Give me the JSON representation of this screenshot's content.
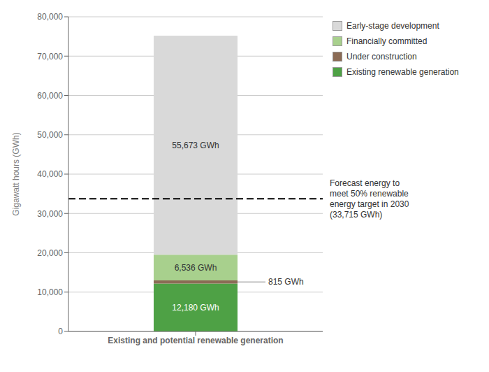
{
  "chart_data": {
    "type": "bar",
    "stacked": true,
    "categories": [
      "Existing and potential renewable generation"
    ],
    "series": [
      {
        "name": "Existing renewable generation",
        "color": "#4EA145",
        "values": [
          12180
        ],
        "value_labels": [
          "12,180 GWh"
        ]
      },
      {
        "name": "Under construction",
        "color": "#8B6B55",
        "values": [
          815
        ],
        "value_labels": [
          "815 GWh"
        ]
      },
      {
        "name": "Financially committed",
        "color": "#A8D08D",
        "values": [
          6536
        ],
        "value_labels": [
          "6,536 GWh"
        ]
      },
      {
        "name": "Early-stage development",
        "color": "#D9D9D9",
        "values": [
          55673
        ],
        "value_labels": [
          "55,673 GWh"
        ]
      }
    ],
    "ylabel": "Gigawatt hours (GWh)",
    "ylim": [
      0,
      80000
    ],
    "yticks": [
      0,
      {
        "value": 10000,
        "label": "10,000"
      },
      {
        "value": 20000,
        "label": "20,000"
      },
      {
        "value": 30000,
        "label": "30,000"
      },
      {
        "value": 40000,
        "label": "40,000"
      },
      {
        "value": 50000,
        "label": "50,000"
      },
      {
        "value": 60000,
        "label": "60,000"
      },
      {
        "value": 70000,
        "label": "70,000"
      },
      {
        "value": 80000,
        "label": "80,000"
      }
    ],
    "grid": true,
    "legend": "right",
    "annotations": [
      {
        "type": "hline",
        "y": 33715,
        "text": "Forecast energy to\nmeet 50% renewable\nenergy target in 2030\n(33,715 GWh)",
        "color": "#000000",
        "line_style": "dashed"
      }
    ]
  }
}
